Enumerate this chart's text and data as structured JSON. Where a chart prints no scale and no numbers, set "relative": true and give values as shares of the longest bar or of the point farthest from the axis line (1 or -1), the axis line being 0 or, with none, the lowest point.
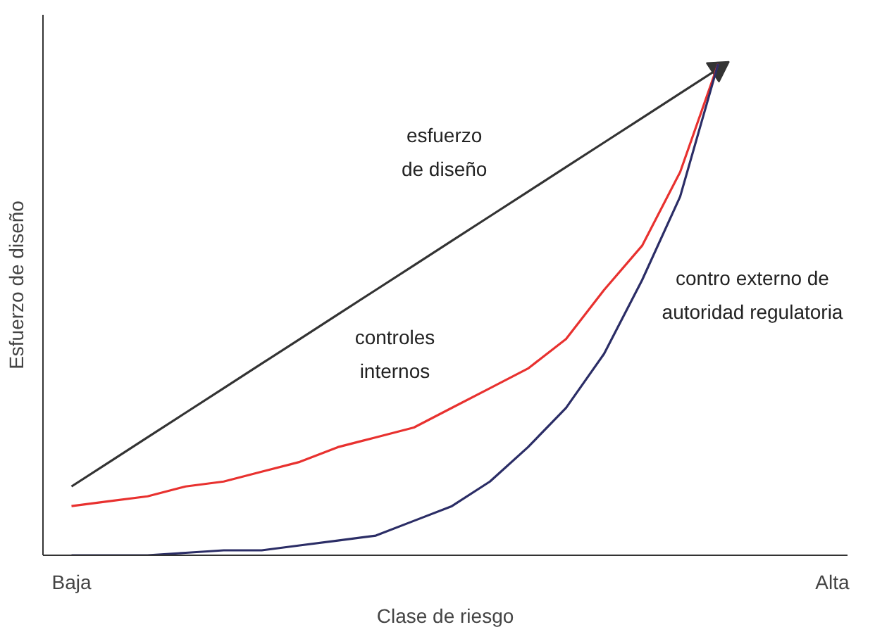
{
  "chart_data": {
    "type": "line",
    "relative": true,
    "xlabel": "Clase de riesgo",
    "ylabel": "Esfuerzo de diseño",
    "categories": [
      "Baja",
      null,
      null,
      null,
      null,
      null,
      null,
      null,
      null,
      null,
      null,
      null,
      null,
      null,
      null,
      null,
      null,
      null,
      null,
      null,
      "Alta"
    ],
    "series": [
      {
        "color": "#333333",
        "values": [
          0.14,
          0.19,
          0.24,
          0.29,
          0.34,
          0.39,
          0.44,
          0.49,
          0.54,
          0.59,
          0.64,
          0.69,
          0.74,
          0.79,
          0.84,
          0.89,
          0.94,
          0.99,
          null,
          null,
          null
        ]
      },
      {
        "color": "#e8312f",
        "values": [
          0.1,
          0.11,
          0.12,
          0.14,
          0.15,
          0.17,
          0.19,
          0.22,
          0.24,
          0.26,
          0.3,
          0.34,
          0.38,
          0.44,
          0.54,
          0.63,
          0.78,
          1.0,
          null,
          null,
          null
        ]
      },
      {
        "color": "#2b2d66",
        "values": [
          0.0,
          0.0,
          0.0,
          0.005,
          0.01,
          0.01,
          0.02,
          0.03,
          0.04,
          0.07,
          0.1,
          0.15,
          0.22,
          0.3,
          0.41,
          0.56,
          0.73,
          1.0,
          null,
          null,
          null
        ]
      }
    ],
    "annotations": [
      "esfuerzo\nde diseño",
      "controles\ninternos",
      "contro externo de\nautoridad regulatoria"
    ],
    "line_style": "solid"
  }
}
